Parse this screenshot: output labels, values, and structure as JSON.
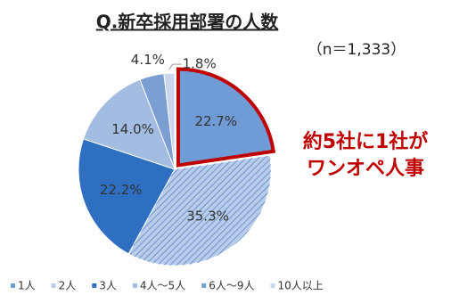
{
  "chart_data": {
    "type": "pie",
    "title": "Q.新卒採用部署の人数",
    "subtitle": "（n＝1,333）",
    "categories": [
      "1人",
      "2人",
      "3人",
      "4人～5人",
      "6人～9人",
      "10人以上"
    ],
    "values": [
      22.7,
      35.3,
      22.2,
      14.0,
      4.1,
      1.8
    ],
    "value_labels": [
      "22.7%",
      "35.3%",
      "22.2%",
      "14.0%",
      "4.1%",
      "1.8%"
    ],
    "colors": [
      "#6f9bd6",
      "#b9cdea",
      "#2f6fc2",
      "#a3bce2",
      "#7b9fd2",
      "#c9d6ec"
    ],
    "highlight_color": "#c00000",
    "annotation": [
      "約5社に1社が",
      "ワンオペ人事"
    ]
  }
}
